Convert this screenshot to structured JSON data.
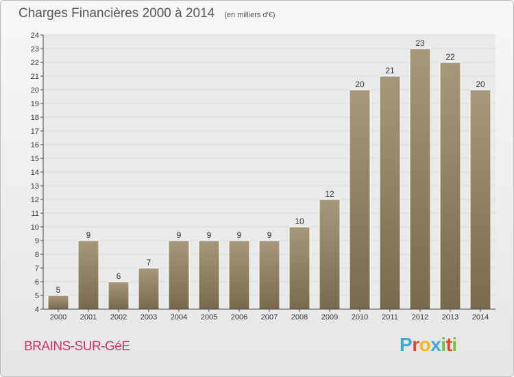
{
  "header": {
    "title": "Charges Financières 2000 à 2014",
    "unit": "(en milliers d'€)"
  },
  "footer": {
    "city": "BRAINS-SUR-GéE",
    "brand": [
      "P",
      "r",
      "o",
      "x",
      "i",
      "t",
      "i"
    ],
    "brand_colors": [
      "#3fa9d6",
      "#e2472e",
      "#f6b51d",
      "#3fa9d6",
      "#7cbf3d",
      "#e2472e",
      "#7cbf3d"
    ]
  },
  "chart_data": {
    "type": "bar",
    "title": "Charges Financières 2000 à 2014",
    "subtitle": "(en milliers d'€)",
    "categories": [
      "2000",
      "2001",
      "2002",
      "2003",
      "2004",
      "2005",
      "2006",
      "2007",
      "2008",
      "2009",
      "2010",
      "2011",
      "2012",
      "2013",
      "2014"
    ],
    "values": [
      5,
      9,
      6,
      7,
      9,
      9,
      9,
      9,
      10,
      12,
      20,
      21,
      23,
      22,
      20
    ],
    "ylim": [
      4,
      24
    ],
    "yticks": [
      4,
      5,
      6,
      7,
      8,
      9,
      10,
      11,
      12,
      13,
      14,
      15,
      16,
      17,
      18,
      19,
      20,
      21,
      22,
      23,
      24
    ],
    "grid": true,
    "bar_color_top": "#a8987a",
    "bar_color_bottom": "#7a6a4c"
  }
}
